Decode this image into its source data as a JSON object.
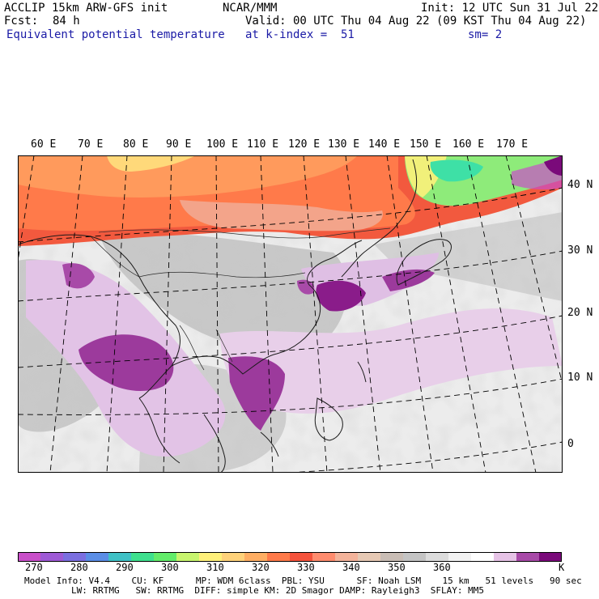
{
  "header": {
    "model": "ACCLIP 15km ARW-GFS init",
    "org": "NCAR/MMM",
    "init": "Init: 12 UTC Sun 31 Jul 22",
    "fcst_label": "Fcst:",
    "fcst_value": "84 h",
    "valid": "Valid: 00 UTC Thu 04 Aug 22 (09 KST Thu 04 Aug 22)",
    "field": "Equivalent potential temperature",
    "level": "at k-index =  51",
    "smoothing": "sm= 2"
  },
  "map": {
    "lon_labels": [
      "60 E",
      "70 E",
      "80 E",
      "90 E",
      "100 E",
      "110 E",
      "120 E",
      "130 E",
      "140 E",
      "150 E",
      "160 E",
      "170 E"
    ],
    "lat_labels": [
      "40 N",
      "30 N",
      "20 N",
      "10 N",
      "0"
    ]
  },
  "colorbar": {
    "unit": "K",
    "tick_labels": [
      "270",
      "280",
      "290",
      "300",
      "310",
      "320",
      "330",
      "340",
      "350",
      "360"
    ],
    "colors": [
      "#c94fc9",
      "#9e5ad6",
      "#7b6fe0",
      "#5b8ee6",
      "#3fc1c6",
      "#3ee08e",
      "#63ec6a",
      "#c8f56e",
      "#fff07a",
      "#ffd27a",
      "#ffae63",
      "#ff7a4a",
      "#f5533c",
      "#ff8c6e",
      "#f3b39a",
      "#e6c9b4",
      "#c9bdb5",
      "#c4c4c4",
      "#dcdcdc",
      "#f2f2f2",
      "#ffffff",
      "#e6c3e6",
      "#a84aa8",
      "#7a0a7a"
    ]
  },
  "footer": {
    "line1": "Model Info: V4.4    CU: KF      MP: WDM 6class  PBL: YSU      SF: Noah LSM    15 km   51 levels   90 sec",
    "line2": "LW: RRTMG   SW: RRTMG  DIFF: simple KM: 2D Smagor DAMP: Rayleigh3  SFLAY: MM5"
  }
}
